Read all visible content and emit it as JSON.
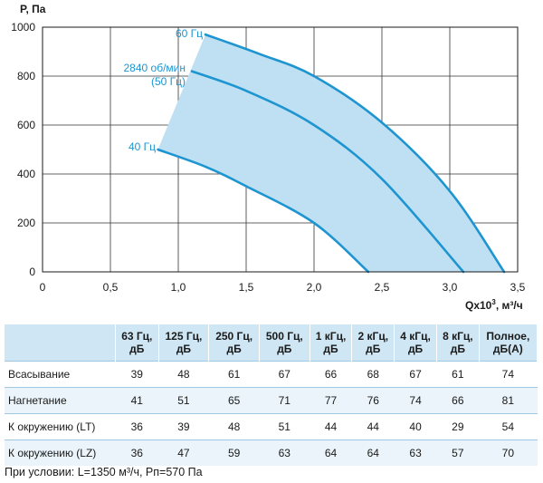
{
  "chart_data": {
    "type": "line",
    "ylabel": "P, Па",
    "xlabel_base": "Qx10",
    "xlabel_sup": "3",
    "xlabel_unit": ", м³/ч",
    "xlim": [
      0,
      3.5
    ],
    "ylim": [
      0,
      1000
    ],
    "x_ticks": [
      0,
      0.5,
      1,
      1.5,
      2,
      2.5,
      3,
      3.5
    ],
    "x_tick_labels": [
      "0",
      "0,5",
      "1,0",
      "1,5",
      "2,0",
      "2,5",
      "3,0",
      "3,5"
    ],
    "y_ticks": [
      0,
      200,
      400,
      600,
      800,
      1000
    ],
    "y_tick_labels": [
      "0",
      "200",
      "400",
      "600",
      "800",
      "1000"
    ],
    "grid": true,
    "operating_area_color": "#bfe0f3",
    "curve_color": "#1e95d0",
    "series": [
      {
        "name": "60 Гц",
        "points": [
          [
            1.2,
            970
          ],
          [
            1.6,
            890
          ],
          [
            2.0,
            800
          ],
          [
            2.5,
            610
          ],
          [
            3.0,
            330
          ],
          [
            3.4,
            0
          ]
        ]
      },
      {
        "name": "2840 об/мин (50 Гц)",
        "points": [
          [
            1.1,
            820
          ],
          [
            1.5,
            740
          ],
          [
            2.0,
            600
          ],
          [
            2.5,
            380
          ],
          [
            3.1,
            0
          ]
        ]
      },
      {
        "name": "40 Гц",
        "points": [
          [
            0.85,
            500
          ],
          [
            1.2,
            430
          ],
          [
            1.5,
            350
          ],
          [
            2.0,
            200
          ],
          [
            2.4,
            0
          ]
        ]
      }
    ],
    "labels": {
      "hz60": "60 Гц",
      "rpm_line1": "2840 об/мин",
      "rpm_line2": "(50 Гц)",
      "hz40": "40 Гц"
    }
  },
  "table": {
    "headers": [
      {
        "line1": "",
        "line2": ""
      },
      {
        "line1": "63 Гц,",
        "line2": "дБ"
      },
      {
        "line1": "125 Гц,",
        "line2": "дБ"
      },
      {
        "line1": "250 Гц,",
        "line2": "дБ"
      },
      {
        "line1": "500 Гц,",
        "line2": "дБ"
      },
      {
        "line1": "1 кГц,",
        "line2": "дБ"
      },
      {
        "line1": "2 кГц,",
        "line2": "дБ"
      },
      {
        "line1": "4 кГц,",
        "line2": "дБ"
      },
      {
        "line1": "8 кГц,",
        "line2": "дБ"
      },
      {
        "line1": "Полное,",
        "line2": "дБ(А)"
      }
    ],
    "rows": [
      {
        "label": "Всасывание",
        "values": [
          "39",
          "48",
          "61",
          "67",
          "66",
          "68",
          "67",
          "61",
          "74"
        ]
      },
      {
        "label": "Нагнетание",
        "values": [
          "41",
          "51",
          "65",
          "71",
          "77",
          "76",
          "74",
          "66",
          "81"
        ]
      },
      {
        "label": "К окружению (LT)",
        "values": [
          "36",
          "39",
          "48",
          "51",
          "44",
          "44",
          "40",
          "29",
          "54"
        ]
      },
      {
        "label": "К окружению (LZ)",
        "values": [
          "36",
          "47",
          "59",
          "63",
          "64",
          "64",
          "63",
          "57",
          "70"
        ]
      }
    ]
  },
  "note": "При условии: L=1350 м³/ч, Рп=570 Па"
}
